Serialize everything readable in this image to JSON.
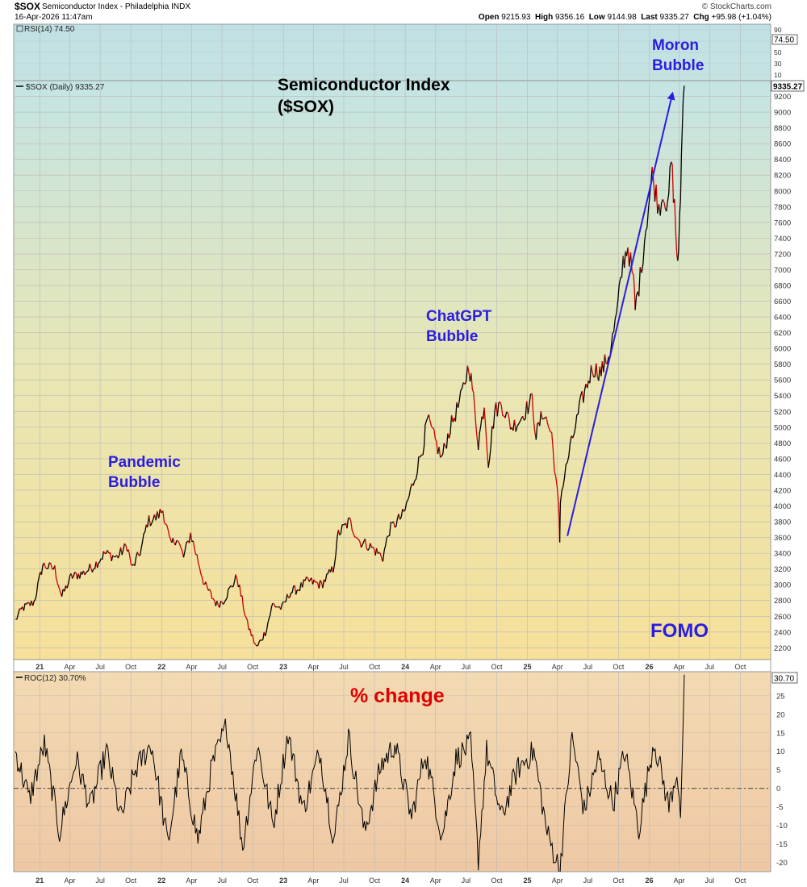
{
  "header": {
    "symbol": "$SOX",
    "description": "Semiconductor Index - Philadelphia INDX",
    "datetime": "16-Apr-2026 11:47am",
    "brand": "© StockCharts.com",
    "open_label": "Open",
    "open_value": "9215.93",
    "high_label": "High",
    "high_value": "9356.16",
    "low_label": "Low",
    "low_value": "9144.98",
    "last_label": "Last",
    "last_value": "9335.27",
    "chg_label": "Chg",
    "chg_value": "+95.98 (+1.04%)"
  },
  "colors": {
    "price_up": "#000000",
    "price_down": "#cc0000",
    "annotation_blue": "#2b1de0",
    "annotation_red": "#e00000",
    "trend_arrow": "#2b1de0",
    "roc_line": "#000000"
  },
  "chart_data": [
    {
      "type": "line",
      "title": "RSI(14)",
      "legend_text": "RSI(14) 74.50",
      "last_value_badge": "74.50",
      "ylim": [
        0,
        100
      ],
      "y_ticks": [
        "90",
        "70",
        "50",
        "30",
        "10"
      ],
      "x": [
        "2026-04-16"
      ],
      "values": [
        74.5
      ]
    },
    {
      "type": "line",
      "title": "Semiconductor Index ($SOX)",
      "legend_text": "$SOX (Daily) 9335.27",
      "last_value_badge": "9335.27",
      "ylim": [
        2050,
        9400
      ],
      "y_ticks": [
        "2200",
        "2400",
        "2600",
        "2800",
        "3000",
        "3200",
        "3400",
        "3600",
        "3800",
        "4000",
        "4200",
        "4400",
        "4600",
        "4800",
        "5000",
        "5200",
        "5400",
        "5600",
        "5800",
        "6000",
        "6200",
        "6400",
        "6600",
        "6800",
        "7000",
        "7200",
        "7400",
        "7600",
        "7800",
        "8000",
        "8200",
        "8400",
        "8600",
        "8800",
        "9000",
        "9200"
      ],
      "x_tick_labels": [
        "21",
        "Apr",
        "Jul",
        "Oct",
        "22",
        "Apr",
        "Jul",
        "Oct",
        "23",
        "Apr",
        "Jul",
        "Oct",
        "24",
        "Apr",
        "Jul",
        "Oct",
        "25",
        "Apr",
        "Jul",
        "Oct",
        "26",
        "Apr",
        "Jul",
        "Oct"
      ],
      "x_dates": [
        "2021-01-01",
        "2021-04-01",
        "2021-07-01",
        "2021-10-01",
        "2022-01-01",
        "2022-04-01",
        "2022-07-01",
        "2022-10-01",
        "2023-01-01",
        "2023-04-01",
        "2023-07-01",
        "2023-10-01",
        "2024-01-01",
        "2024-04-01",
        "2024-07-01",
        "2024-10-01",
        "2025-01-01",
        "2025-04-01",
        "2025-07-01",
        "2025-10-01",
        "2026-01-01",
        "2026-04-01",
        "2026-07-01",
        "2026-10-01"
      ],
      "grid": true,
      "series": [
        {
          "x": [
            "2020-10-20",
            "2020-11-10",
            "2020-12-15",
            "2021-01-10",
            "2021-02-15",
            "2021-03-08",
            "2021-04-05",
            "2021-05-12",
            "2021-06-15",
            "2021-07-15",
            "2021-08-20",
            "2021-09-20",
            "2021-10-05",
            "2021-11-01",
            "2021-11-20",
            "2021-12-15",
            "2022-01-05",
            "2022-01-28",
            "2022-02-15",
            "2022-03-08",
            "2022-03-29",
            "2022-05-10",
            "2022-06-16",
            "2022-07-05",
            "2022-08-15",
            "2022-09-15",
            "2022-10-13",
            "2022-11-08",
            "2022-11-30",
            "2022-12-28",
            "2023-01-20",
            "2023-02-15",
            "2023-03-15",
            "2023-04-25",
            "2023-05-30",
            "2023-06-15",
            "2023-07-18",
            "2023-08-18",
            "2023-09-15",
            "2023-10-26",
            "2023-11-15",
            "2023-12-28",
            "2024-01-25",
            "2024-02-23",
            "2024-03-08",
            "2024-04-19",
            "2024-05-15",
            "2024-06-15",
            "2024-07-10",
            "2024-07-20",
            "2024-08-07",
            "2024-08-25",
            "2024-09-06",
            "2024-09-25",
            "2024-10-15",
            "2024-11-15",
            "2024-12-10",
            "2025-01-15",
            "2025-01-27",
            "2025-02-18",
            "2025-03-15",
            "2025-04-04",
            "2025-04-08",
            "2025-04-10",
            "2025-05-05",
            "2025-06-10",
            "2025-07-15",
            "2025-08-10",
            "2025-09-05",
            "2025-09-25",
            "2025-10-15",
            "2025-10-29",
            "2025-11-15",
            "2025-11-20",
            "2025-12-05",
            "2025-12-18",
            "2026-01-10",
            "2026-01-30",
            "2026-02-15",
            "2026-02-25",
            "2026-03-08",
            "2026-03-18",
            "2026-03-25",
            "2026-03-30",
            "2026-04-05",
            "2026-04-10",
            "2026-04-16"
          ],
          "values": [
            2550,
            2700,
            2780,
            3250,
            3200,
            2850,
            3100,
            3150,
            3250,
            3400,
            3350,
            3500,
            3200,
            3450,
            3800,
            3850,
            3950,
            3500,
            3600,
            3350,
            3650,
            3000,
            2750,
            2800,
            3100,
            2500,
            2200,
            2400,
            2750,
            2700,
            2900,
            2950,
            3050,
            3000,
            3200,
            3650,
            3800,
            3550,
            3500,
            3350,
            3700,
            3900,
            4300,
            4750,
            5100,
            4600,
            5000,
            5350,
            5800,
            5500,
            4800,
            5300,
            4550,
            5200,
            5300,
            5000,
            5100,
            5350,
            4900,
            5200,
            4900,
            4000,
            3560,
            4100,
            4650,
            5300,
            5750,
            5700,
            5950,
            6400,
            7100,
            7300,
            6850,
            6500,
            6900,
            7400,
            8200,
            7800,
            8000,
            7700,
            8400,
            7800,
            7200,
            7150,
            7950,
            8900,
            9335
          ]
        }
      ],
      "annotations": [
        {
          "text_lines": [
            "Semiconductor Index",
            "($SOX)"
          ],
          "color": "#000000"
        },
        {
          "text_lines": [
            "Pandemic",
            "Bubble"
          ],
          "color": "#2b1de0"
        },
        {
          "text_lines": [
            "ChatGPT",
            "Bubble"
          ],
          "color": "#2b1de0"
        },
        {
          "text_lines": [
            "Moron",
            "Bubble"
          ],
          "color": "#2b1de0"
        },
        {
          "text_lines": [
            "FOMO"
          ],
          "color": "#2b1de0"
        }
      ],
      "trend_arrow": {
        "from": [
          "2025-05-01",
          3620
        ],
        "to": [
          "2026-03-12",
          9240
        ]
      }
    },
    {
      "type": "line",
      "title": "% change",
      "legend_text": "ROC(12) 30.70%",
      "last_value_badge": "30.70",
      "ylim": [
        -22.5,
        31.5
      ],
      "y_ticks": [
        "25",
        "20",
        "15",
        "10",
        "5",
        "0",
        "-5",
        "-10",
        "-15",
        "-20"
      ],
      "x_tick_labels": [
        "21",
        "Apr",
        "Jul",
        "Oct",
        "22",
        "Apr",
        "Jul",
        "Oct",
        "23",
        "Apr",
        "Jul",
        "Oct",
        "24",
        "Apr",
        "Jul",
        "Oct",
        "25",
        "Apr",
        "Jul",
        "Oct",
        "26",
        "Apr",
        "Jul",
        "Oct"
      ],
      "series": [
        {
          "x": [
            "2020-10-20",
            "2020-12-01",
            "2021-01-15",
            "2021-03-01",
            "2021-04-20",
            "2021-06-01",
            "2021-07-20",
            "2021-09-01",
            "2021-10-15",
            "2021-12-01",
            "2022-01-20",
            "2022-03-01",
            "2022-04-20",
            "2022-06-01",
            "2022-07-15",
            "2022-09-01",
            "2022-10-15",
            "2022-12-01",
            "2023-01-15",
            "2023-03-01",
            "2023-04-20",
            "2023-06-01",
            "2023-07-15",
            "2023-09-01",
            "2023-10-20",
            "2023-12-01",
            "2024-01-20",
            "2024-03-01",
            "2024-04-20",
            "2024-06-01",
            "2024-07-15",
            "2024-08-07",
            "2024-09-01",
            "2024-10-15",
            "2024-12-01",
            "2025-01-20",
            "2025-03-01",
            "2025-04-08",
            "2025-05-15",
            "2025-06-20",
            "2025-08-01",
            "2025-09-15",
            "2025-10-20",
            "2025-12-01",
            "2026-01-15",
            "2026-03-01",
            "2026-03-25",
            "2026-04-05",
            "2026-04-12",
            "2026-04-16"
          ],
          "values": [
            10,
            -3,
            12,
            -12,
            8,
            -5,
            10,
            -8,
            5,
            12,
            -15,
            9,
            -14,
            6,
            17,
            -16,
            12,
            -10,
            15,
            -6,
            10,
            -14,
            14,
            -12,
            6,
            12,
            -8,
            10,
            -13,
            8,
            12,
            -19,
            10,
            -8,
            5,
            10,
            -12,
            -22,
            14,
            -6,
            8,
            -4,
            10,
            -11,
            13,
            -5,
            5,
            -8,
            15,
            30.7
          ]
        }
      ]
    }
  ]
}
